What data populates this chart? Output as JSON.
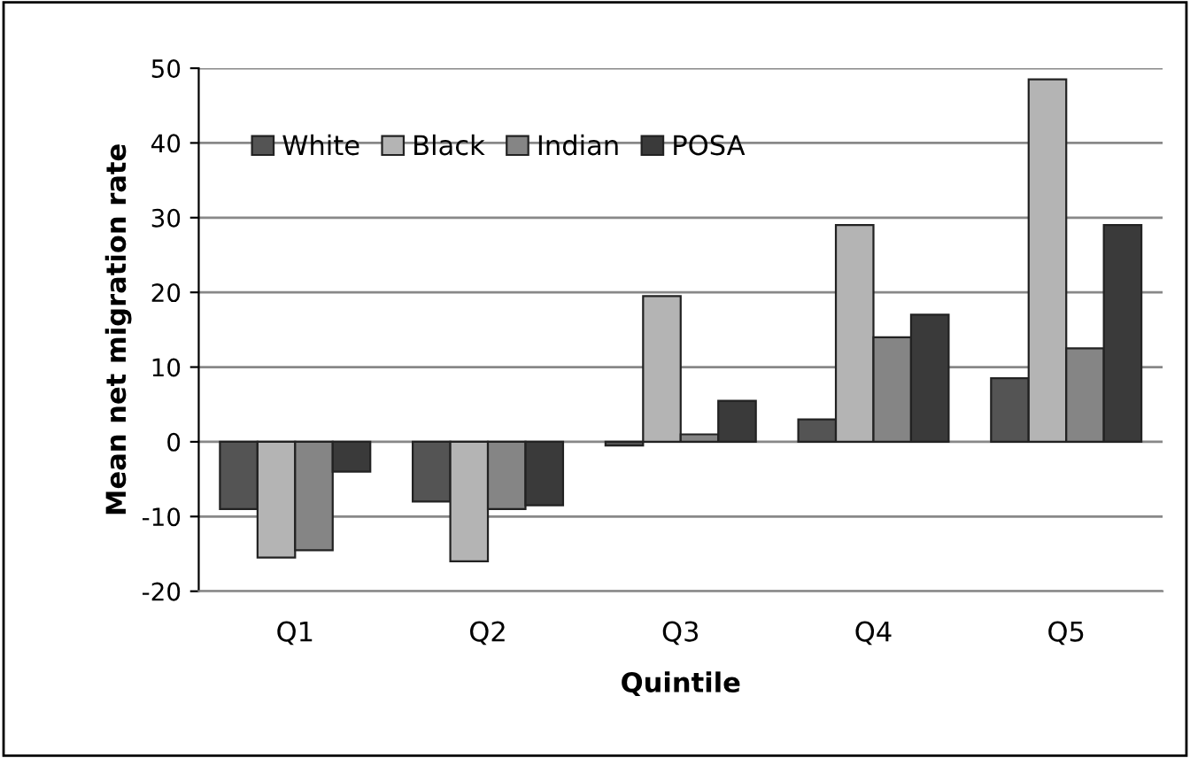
{
  "chart_data": {
    "type": "bar",
    "xlabel": "Quintile",
    "ylabel": "Mean net migration rate",
    "categories": [
      "Q1",
      "Q2",
      "Q3",
      "Q4",
      "Q5"
    ],
    "series": [
      {
        "name": "White",
        "color": "#545454",
        "values": [
          -9,
          -8,
          -0.5,
          3,
          8.5
        ]
      },
      {
        "name": "Black",
        "color": "#b4b4b4",
        "values": [
          -15.5,
          -16,
          19.5,
          29,
          48.5
        ]
      },
      {
        "name": "Indian",
        "color": "#858585",
        "values": [
          -14.5,
          -9,
          1,
          14,
          12.5
        ]
      },
      {
        "name": "POSA",
        "color": "#3a3a3a",
        "values": [
          -4,
          -8.5,
          5.5,
          17,
          29
        ]
      }
    ],
    "ylim": [
      -20,
      50
    ],
    "yticks": [
      -20,
      -10,
      0,
      10,
      20,
      30,
      40,
      50
    ],
    "grid": "y",
    "legend": "top left"
  }
}
